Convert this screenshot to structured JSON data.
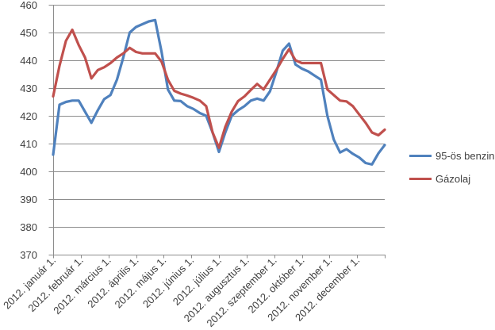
{
  "chart_data": {
    "type": "line",
    "title": "",
    "xlabel": "",
    "ylabel": "",
    "ylim": [
      370,
      460
    ],
    "y_ticks": [
      370,
      380,
      390,
      400,
      410,
      420,
      430,
      440,
      450,
      460
    ],
    "grid": true,
    "legend_position": "right",
    "x_tick_labels": [
      "2012. január 1.",
      "2012. február 1.",
      "2012. március 1.",
      "2012. április 1.",
      "2012. május 1.",
      "2012. június 1.",
      "2012. július 1.",
      "2012. augusztus 1.",
      "2012. szeptember 1.",
      "2012. október 1.",
      "2012. november 1.",
      "2012. december 1."
    ],
    "x_unit": "weekly samples across 2012, first point at 2012. január 1.",
    "series": [
      {
        "name": "95-ös benzin",
        "color": "#4F81BD",
        "values": [
          406,
          424,
          425,
          425.5,
          425.5,
          421.5,
          417.5,
          422,
          426,
          427.5,
          433,
          441,
          450,
          452,
          453,
          454,
          454.5,
          443,
          429.5,
          425.5,
          425.3,
          423.5,
          422.5,
          421,
          420,
          414,
          407,
          414,
          420,
          422,
          423.5,
          425.5,
          426.2,
          425.5,
          428.8,
          435.8,
          443.5,
          446,
          438.5,
          437,
          436,
          434.5,
          433,
          420,
          411.5,
          406.8,
          408,
          406.3,
          405,
          403,
          402.5,
          406.5,
          409.5
        ]
      },
      {
        "name": "Gázolaj",
        "color": "#C0504D",
        "values": [
          427,
          438,
          447,
          451,
          445.5,
          441,
          433.5,
          436.5,
          437.5,
          439,
          441,
          442.5,
          444.5,
          443,
          442.5,
          442.5,
          442.5,
          439.5,
          433,
          429,
          428,
          427.3,
          426.5,
          425.5,
          423.5,
          414,
          408.5,
          416,
          421.5,
          425.3,
          427,
          429.3,
          431.5,
          429.5,
          433,
          436.5,
          440.5,
          444,
          440,
          439,
          439,
          439,
          439,
          429.5,
          427.5,
          425.5,
          425.2,
          423.5,
          420.5,
          417.5,
          414,
          413,
          415
        ]
      }
    ]
  },
  "colors": {
    "grid": "#8D8D8D",
    "axis": "#8D8D8D",
    "tick_text": "#404040",
    "background": "#FFFFFF"
  }
}
